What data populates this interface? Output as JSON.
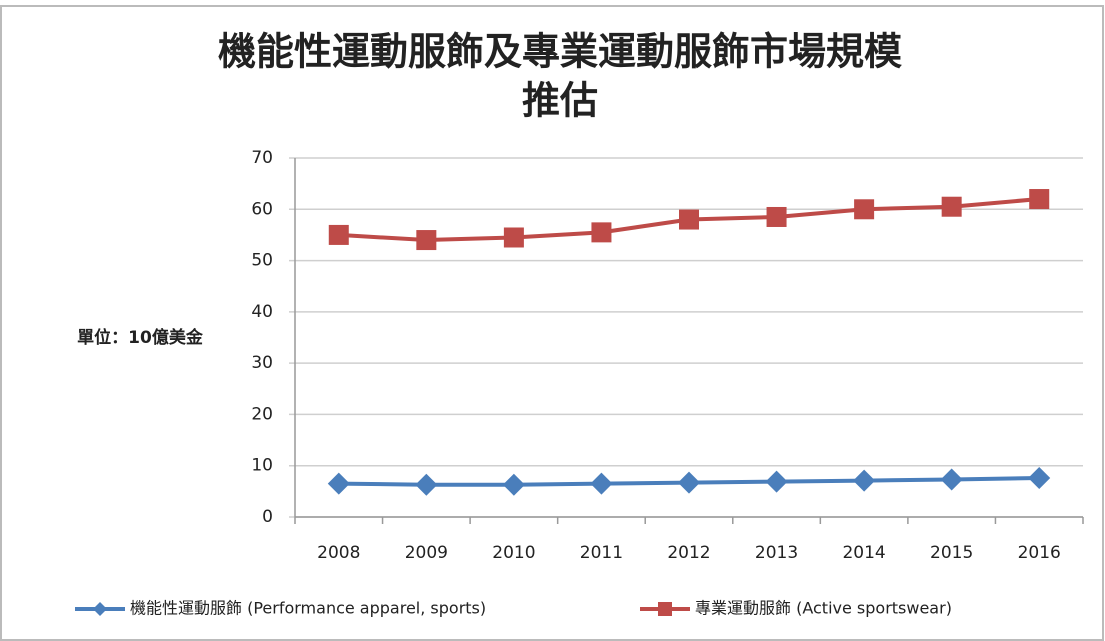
{
  "chart_data": {
    "type": "line",
    "title": [
      "機能性運動服飾及專業運動服飾市場規模",
      "推估"
    ],
    "y_label": "單位：10億美金",
    "categories": [
      "2008",
      "2009",
      "2010",
      "2011",
      "2012",
      "2013",
      "2014",
      "2015",
      "2016"
    ],
    "series": [
      {
        "name": "機能性運動服飾 (Performance apparel, sports)",
        "color": "#4a7ebb",
        "marker": "diamond",
        "values": [
          6.5,
          6.3,
          6.3,
          6.5,
          6.7,
          6.9,
          7.1,
          7.3,
          7.6
        ]
      },
      {
        "name": "專業運動服飾 (Active sportswear)",
        "color": "#be4b48",
        "marker": "square",
        "values": [
          55,
          54,
          54.5,
          55.5,
          58,
          58.5,
          60,
          60.5,
          62
        ]
      }
    ],
    "ylim": [
      0,
      70
    ],
    "yticks": [
      0,
      10,
      20,
      30,
      40,
      50,
      60,
      70
    ],
    "grid": true,
    "legend": "bottom"
  }
}
